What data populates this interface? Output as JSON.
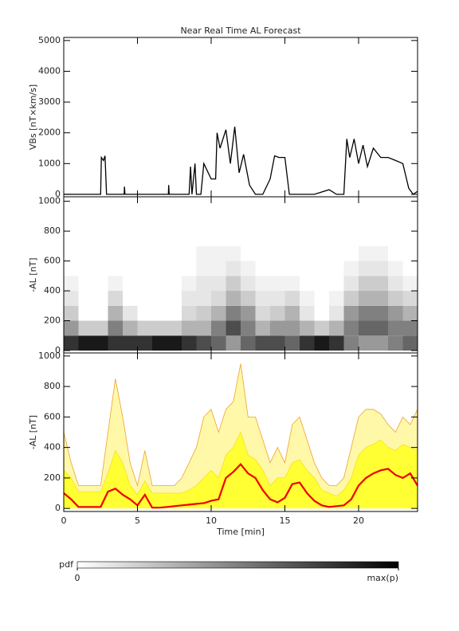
{
  "chart_data": [
    {
      "type": "line",
      "title": "Near Real Time AL Forecast",
      "ylabel": "VBs [nT×km/s]",
      "color": "#000000",
      "x": [
        0,
        2.5,
        2.55,
        2.7,
        2.8,
        2.9,
        3.0,
        4.1,
        4.12,
        4.15,
        7.1,
        7.12,
        7.15,
        8.5,
        8.6,
        8.7,
        8.9,
        9.0,
        9.3,
        9.5,
        10.0,
        10.3,
        10.4,
        10.6,
        11.0,
        11.3,
        11.6,
        11.9,
        12.2,
        12.6,
        13.0,
        13.5,
        14.0,
        14.3,
        14.6,
        15.0,
        15.3,
        16.0,
        16.5,
        17.0,
        18.0,
        18.5,
        19.0,
        19.2,
        19.4,
        19.7,
        20.0,
        20.3,
        20.6,
        21.0,
        21.5,
        22.0,
        22.5,
        23.0,
        23.4,
        23.7,
        24.0
      ],
      "values": [
        0,
        0,
        1200,
        1100,
        1250,
        0,
        0,
        0,
        250,
        0,
        0,
        300,
        0,
        0,
        900,
        0,
        1000,
        0,
        0,
        1000,
        500,
        500,
        2000,
        1500,
        2100,
        1000,
        2200,
        700,
        1300,
        300,
        0,
        0,
        500,
        1250,
        1200,
        1200,
        0,
        0,
        0,
        0,
        150,
        0,
        0,
        1800,
        1200,
        1800,
        1000,
        1600,
        900,
        1500,
        1200,
        1200,
        1100,
        1000,
        200,
        0,
        100
      ],
      "xlim": [
        0,
        24
      ],
      "xticks": [
        0,
        5,
        10,
        15,
        20
      ],
      "ylim": [
        -80,
        5100
      ],
      "yticks": [
        0,
        1000,
        2000,
        3000,
        4000,
        5000
      ]
    },
    {
      "type": "heatmap",
      "ylabel": "-AL [nT]",
      "xbins": [
        0,
        1,
        2,
        3,
        4,
        5,
        6,
        7,
        8,
        9,
        10,
        11,
        12,
        13,
        14,
        15,
        16,
        17,
        18,
        19,
        20,
        21,
        22,
        23,
        24
      ],
      "ybins": [
        0,
        100,
        200,
        300,
        400,
        500,
        600,
        700
      ],
      "z": [
        [
          0.8,
          0.4,
          0.2,
          0.1,
          0.05,
          0,
          0
        ],
        [
          0.9,
          0.2,
          0,
          0,
          0,
          0,
          0
        ],
        [
          0.9,
          0.2,
          0,
          0,
          0,
          0,
          0
        ],
        [
          0.8,
          0.5,
          0.3,
          0.15,
          0.05,
          0,
          0
        ],
        [
          0.8,
          0.3,
          0.1,
          0,
          0,
          0,
          0
        ],
        [
          0.8,
          0.2,
          0,
          0,
          0,
          0,
          0
        ],
        [
          0.9,
          0.2,
          0,
          0,
          0,
          0,
          0
        ],
        [
          0.9,
          0.2,
          0,
          0,
          0,
          0,
          0
        ],
        [
          0.8,
          0.3,
          0.15,
          0.1,
          0.05,
          0,
          0
        ],
        [
          0.7,
          0.3,
          0.2,
          0.1,
          0.1,
          0.05,
          0.05
        ],
        [
          0.6,
          0.5,
          0.3,
          0.15,
          0.1,
          0.05,
          0.05
        ],
        [
          0.4,
          0.7,
          0.5,
          0.3,
          0.2,
          0.1,
          0.05
        ],
        [
          0.6,
          0.5,
          0.4,
          0.2,
          0.1,
          0.05,
          0
        ],
        [
          0.7,
          0.3,
          0.15,
          0.1,
          0.05,
          0,
          0
        ],
        [
          0.7,
          0.4,
          0.2,
          0.1,
          0.05,
          0,
          0
        ],
        [
          0.6,
          0.4,
          0.3,
          0.15,
          0.05,
          0,
          0
        ],
        [
          0.8,
          0.3,
          0.1,
          0.05,
          0,
          0,
          0
        ],
        [
          0.9,
          0.2,
          0,
          0,
          0,
          0,
          0
        ],
        [
          0.8,
          0.3,
          0.1,
          0.05,
          0,
          0,
          0
        ],
        [
          0.5,
          0.5,
          0.4,
          0.2,
          0.1,
          0.05,
          0
        ],
        [
          0.4,
          0.6,
          0.5,
          0.3,
          0.2,
          0.1,
          0.05
        ],
        [
          0.4,
          0.6,
          0.5,
          0.3,
          0.2,
          0.1,
          0.05
        ],
        [
          0.5,
          0.5,
          0.4,
          0.2,
          0.1,
          0.05,
          0
        ],
        [
          0.6,
          0.5,
          0.3,
          0.15,
          0.05,
          0,
          0
        ]
      ],
      "zlim": [
        0,
        1
      ],
      "colorbar_label": "pdf",
      "colorbar_ticks": [
        0,
        {
          "value": 1,
          "label": "max(p)"
        }
      ],
      "xlim": [
        0,
        24
      ],
      "xticks": [
        0,
        5,
        10,
        15,
        20
      ],
      "ylim": [
        -16,
        1030
      ],
      "yticks": [
        0,
        200,
        400,
        600,
        800,
        1000
      ]
    },
    {
      "type": "area",
      "ylabel": "-AL [nT]",
      "xlabel": "Time [min]",
      "x": [
        0,
        0.5,
        1,
        1.5,
        2,
        2.5,
        3,
        3.5,
        4,
        4.5,
        5,
        5.5,
        6,
        6.5,
        7,
        7.5,
        8,
        8.5,
        9,
        9.5,
        10,
        10.5,
        11,
        11.5,
        12,
        12.5,
        13,
        13.5,
        14,
        14.5,
        15,
        15.5,
        16,
        16.5,
        17,
        17.5,
        18,
        18.5,
        19,
        19.5,
        20,
        20.5,
        21,
        21.5,
        22,
        22.5,
        23,
        23.5,
        24
      ],
      "series": [
        {
          "color": "#f0a030",
          "fill": "#fff8a8",
          "values": [
            500,
            300,
            150,
            150,
            150,
            150,
            500,
            850,
            600,
            300,
            150,
            380,
            150,
            150,
            150,
            150,
            200,
            300,
            400,
            600,
            650,
            500,
            650,
            700,
            950,
            600,
            600,
            450,
            300,
            400,
            300,
            550,
            600,
            450,
            300,
            200,
            150,
            150,
            200,
            400,
            600,
            650,
            650,
            620,
            550,
            500,
            600,
            550,
            650
          ]
        },
        {
          "color": "#f5e020",
          "fill": "#ffff33",
          "values": [
            250,
            200,
            110,
            110,
            110,
            110,
            230,
            380,
            300,
            150,
            90,
            180,
            100,
            100,
            100,
            100,
            100,
            120,
            150,
            200,
            250,
            200,
            350,
            400,
            500,
            350,
            320,
            250,
            150,
            200,
            200,
            300,
            320,
            250,
            200,
            120,
            100,
            80,
            120,
            200,
            350,
            400,
            420,
            450,
            400,
            380,
            420,
            400,
            380
          ]
        },
        {
          "color": "#ee0000",
          "values": [
            100,
            60,
            10,
            10,
            10,
            10,
            110,
            130,
            90,
            60,
            20,
            90,
            5,
            5,
            10,
            15,
            20,
            25,
            30,
            35,
            50,
            60,
            200,
            240,
            290,
            230,
            200,
            120,
            60,
            40,
            70,
            160,
            170,
            100,
            50,
            20,
            10,
            15,
            20,
            60,
            150,
            200,
            230,
            250,
            260,
            220,
            200,
            230,
            150
          ]
        }
      ],
      "xlim": [
        0,
        24
      ],
      "xticks": [
        0,
        5,
        10,
        15,
        20
      ],
      "ylim": [
        -20,
        1020
      ],
      "yticks": [
        0,
        200,
        400,
        600,
        800,
        1000
      ]
    }
  ]
}
